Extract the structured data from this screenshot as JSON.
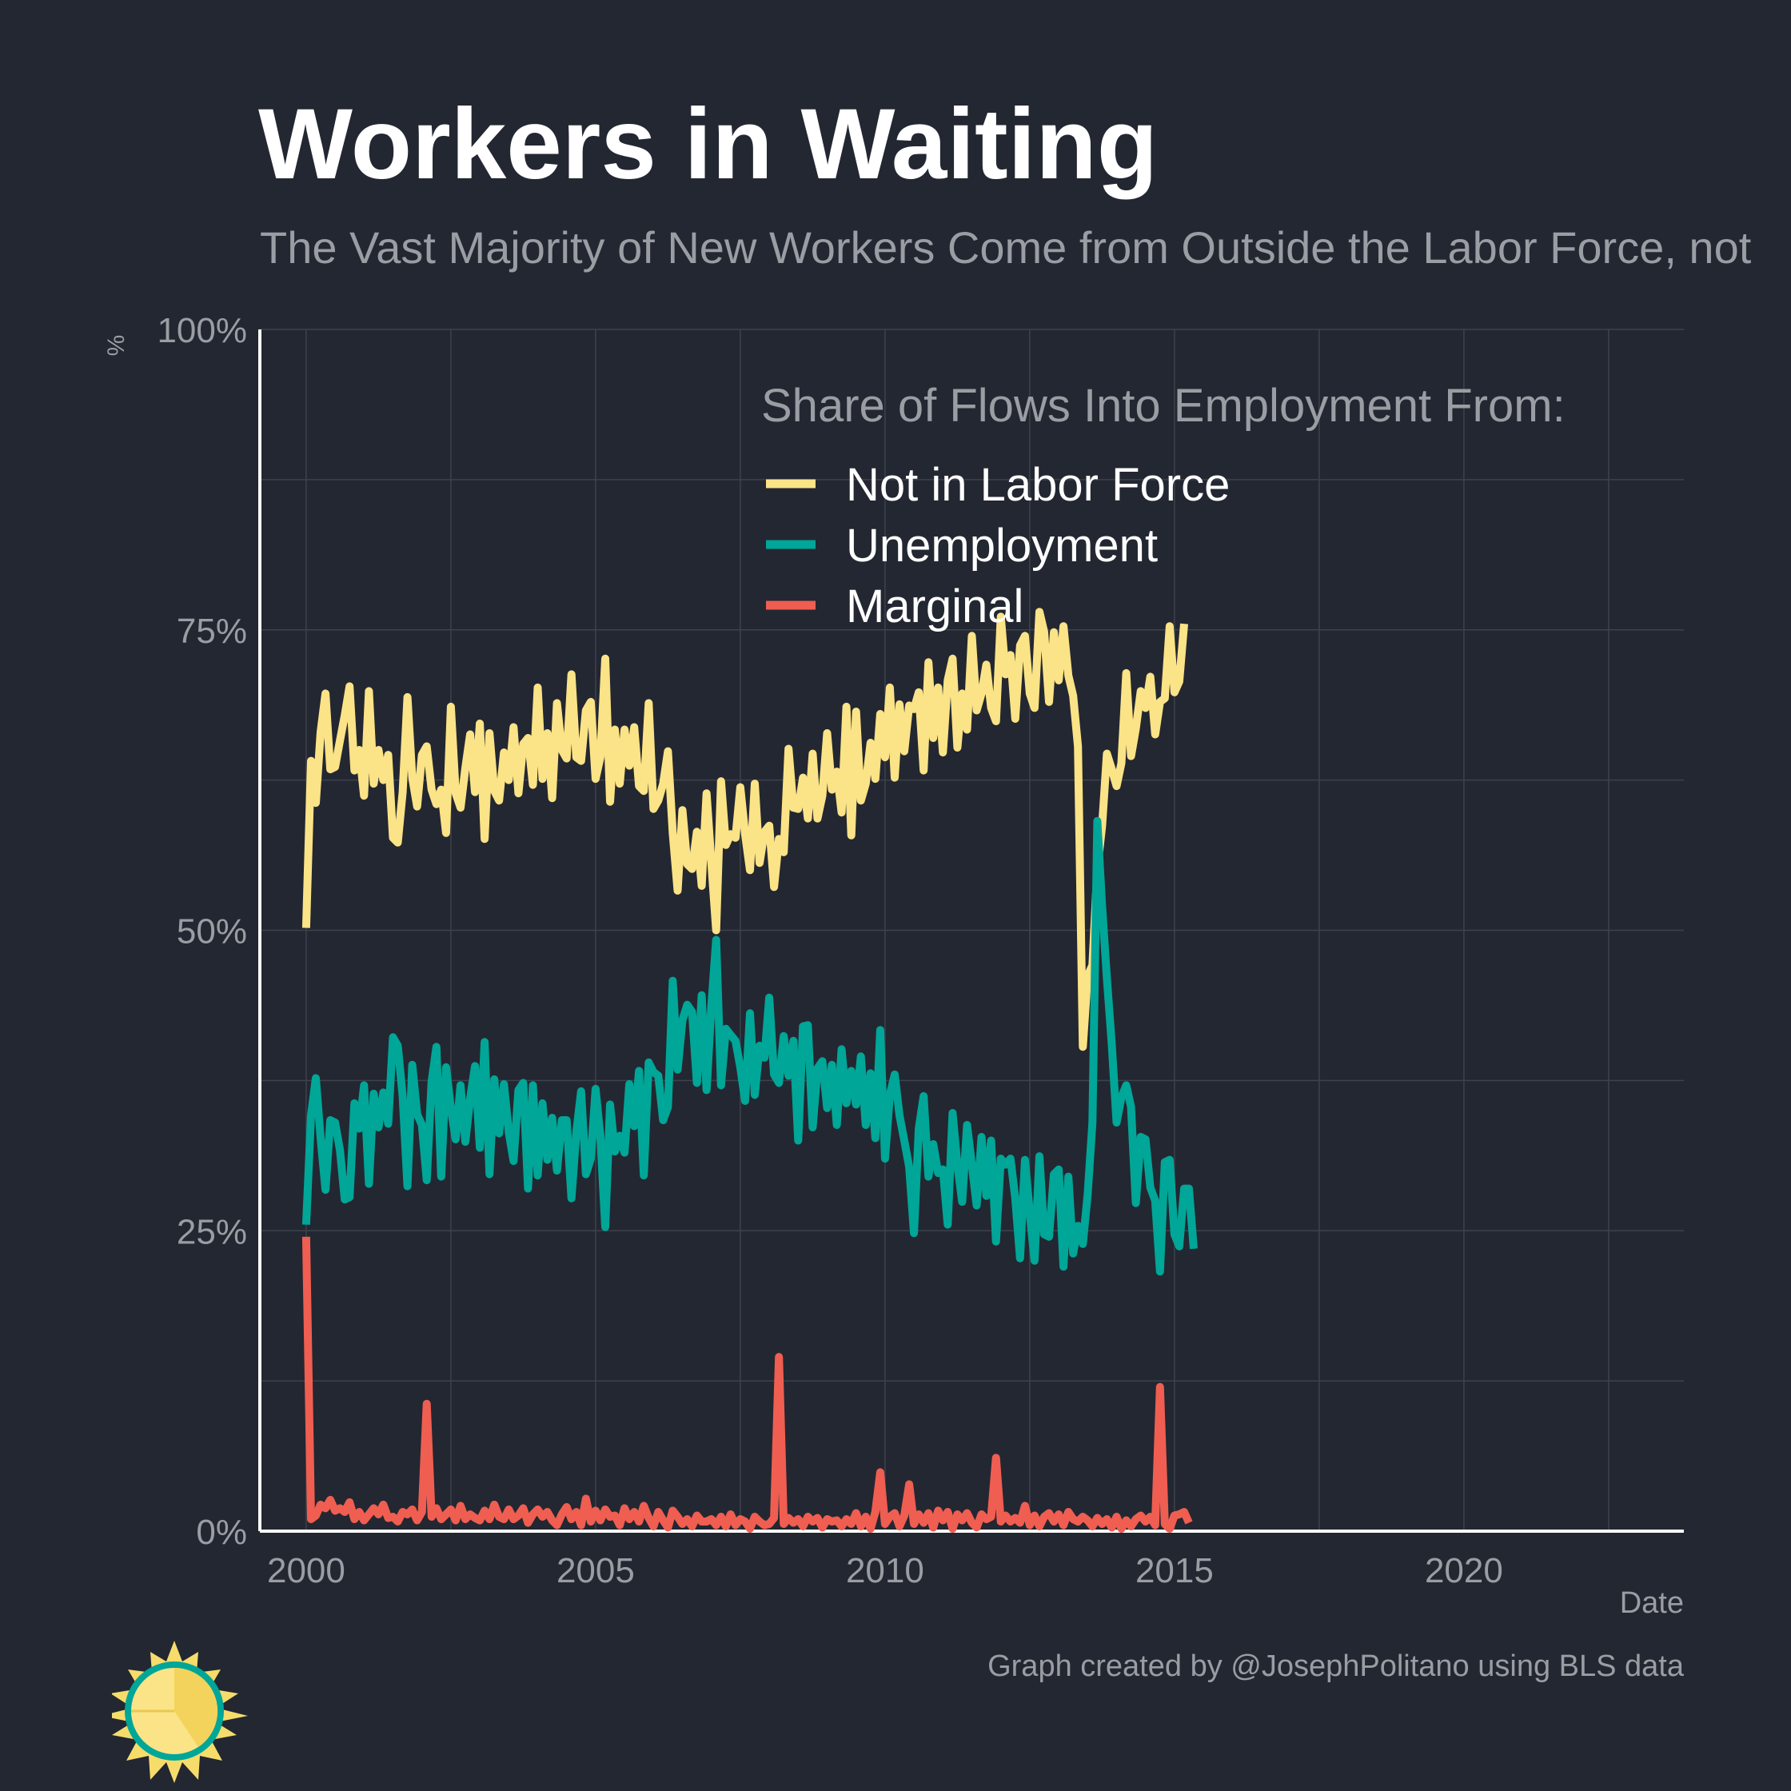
{
  "title": "Workers in Waiting",
  "subtitle": "The Vast Majority of New Workers Come from Outside the Labor Force, not",
  "caption": "Graph created by @JosephPolitano using BLS data",
  "colors": {
    "background": "#232731",
    "grid": "#3d424c",
    "text_muted": "#9a9da3",
    "series": [
      "#fbe387",
      "#00a697",
      "#ef5e51"
    ]
  },
  "chart_data": {
    "type": "line",
    "xlabel": "Date",
    "ylabel": "%",
    "xlim": [
      1999.2,
      2023.8
    ],
    "ylim": [
      0,
      100
    ],
    "x_ticks": [
      2000,
      2005,
      2010,
      2015,
      2020
    ],
    "x_tick_labels": [
      "2000",
      "2005",
      "2010",
      "2015",
      "2020"
    ],
    "y_ticks": [
      0,
      25,
      50,
      75,
      100
    ],
    "y_tick_labels": [
      "0%",
      "25%",
      "50%",
      "75%",
      "100%"
    ],
    "grid": true,
    "legend": {
      "title": "Share of Flows Into Employment From:",
      "placement": "top-right"
    },
    "x_start": 2000.0,
    "x_step": 0.0833333,
    "series": [
      {
        "name": "Not in Labor Force",
        "color": "#fbe387",
        "values": [
          50.2,
          64.1,
          60.6,
          66.5,
          69.7,
          63.4,
          63.6,
          65.8,
          67.9,
          70.3,
          63.3,
          65.0,
          61.2,
          69.9,
          62.2,
          65.0,
          62.5,
          64.6,
          57.7,
          57.3,
          61.5,
          69.4,
          62.7,
          60.3,
          64.6,
          65.3,
          61.7,
          60.5,
          61.7,
          58.1,
          68.6,
          61.4,
          60.2,
          63.5,
          66.3,
          61.5,
          67.2,
          57.6,
          66.4,
          61.6,
          60.8,
          64.8,
          62.5,
          66.9,
          61.4,
          65.5,
          66.0,
          62.1,
          70.2,
          62.6,
          66.4,
          61.0,
          68.9,
          65.0,
          64.3,
          71.3,
          64.4,
          64.1,
          68.3,
          69.0,
          62.6,
          64.4,
          72.6,
          60.7,
          66.7,
          62.2,
          66.7,
          63.7,
          66.9,
          62.0,
          61.6,
          68.9,
          60.1,
          60.8,
          62.2,
          64.9,
          58.1,
          53.3,
          60.0,
          55.5,
          55.1,
          58.2,
          53.7,
          61.4,
          55.6,
          50.0,
          62.4,
          57.1,
          58.0,
          57.7,
          61.9,
          58.0,
          55.0,
          62.2,
          55.6,
          58.2,
          58.7,
          53.6,
          57.6,
          56.5,
          65.1,
          60.2,
          60.1,
          62.7,
          59.3,
          64.7,
          59.3,
          61.2,
          66.4,
          61.7,
          63.2,
          59.8,
          68.6,
          57.9,
          68.2,
          60.8,
          62.2,
          65.6,
          62.6,
          68.0,
          64.4,
          70.2,
          62.7,
          68.8,
          64.9,
          68.7,
          68.4,
          69.8,
          63.3,
          72.3,
          66.0,
          70.2,
          64.8,
          70.8,
          72.6,
          65.2,
          69.7,
          66.7,
          74.5,
          68.3,
          69.7,
          72.1,
          68.5,
          67.4,
          76.1,
          71.3,
          72.9,
          67.6,
          73.7,
          74.5,
          69.7,
          68.5,
          76.5,
          74.8,
          69.0,
          74.8,
          70.8,
          75.3,
          71.2,
          69.5,
          65.3,
          40.3,
          46.2,
          47.1,
          55.1,
          58.7,
          64.7,
          63.4,
          62.0,
          63.9,
          71.4,
          64.5,
          66.8,
          69.9,
          68.5,
          71.1,
          66.3,
          69.0,
          69.3,
          75.3,
          69.8,
          70.7,
          75.5
        ],
        "label_x": 2000.0
      },
      {
        "name": "Unemployment",
        "color": "#00a697",
        "values": [
          25.5,
          34.6,
          37.7,
          32.7,
          28.4,
          34.2,
          34.0,
          31.7,
          27.6,
          27.8,
          35.6,
          33.5,
          37.1,
          28.9,
          36.4,
          33.6,
          36.5,
          33.9,
          41.1,
          40.4,
          36.2,
          28.7,
          38.8,
          34.7,
          33.8,
          29.2,
          37.4,
          40.3,
          29.5,
          38.6,
          35.2,
          32.6,
          37.1,
          32.4,
          36.0,
          38.7,
          31.9,
          40.7,
          29.7,
          37.6,
          33.1,
          37.2,
          33.2,
          30.8,
          36.7,
          37.3,
          28.5,
          37.1,
          29.6,
          35.6,
          30.9,
          34.4,
          30.0,
          34.2,
          34.2,
          27.7,
          33.2,
          36.6,
          29.7,
          31.0,
          36.8,
          32.8,
          25.3,
          35.5,
          31.6,
          32.9,
          31.5,
          37.2,
          33.7,
          38.3,
          29.6,
          39.0,
          38.2,
          37.9,
          34.2,
          35.3,
          45.8,
          38.4,
          42.5,
          43.8,
          43.2,
          37.3,
          44.6,
          36.7,
          43.7,
          49.2,
          37.1,
          41.8,
          41.3,
          40.8,
          38.6,
          35.8,
          43.1,
          36.3,
          40.4,
          39.4,
          44.4,
          38.0,
          37.3,
          41.2,
          37.9,
          40.8,
          32.5,
          42.0,
          42.1,
          33.6,
          38.5,
          39.1,
          35.2,
          38.8,
          33.8,
          40.1,
          35.6,
          38.3,
          35.5,
          39.5,
          33.8,
          38.1,
          32.7,
          41.7,
          31.0,
          36.3,
          38.0,
          34.6,
          32.5,
          30.3,
          24.8,
          33.5,
          36.2,
          29.5,
          32.2,
          29.8,
          30.1,
          25.5,
          34.8,
          30.5,
          27.4,
          33.8,
          30.5,
          27.1,
          32.8,
          27.9,
          32.5,
          24.1,
          31.0,
          30.5,
          31.0,
          27.7,
          22.7,
          30.9,
          26.5,
          22.5,
          31.2,
          24.7,
          24.5,
          29.7,
          30.1,
          22.0,
          29.5,
          23.1,
          25.4,
          23.9,
          28.0,
          34.0,
          59.1,
          52.0,
          46.0,
          40.5,
          34.0,
          36.1,
          37.1,
          35.3,
          27.3,
          32.8,
          32.6,
          28.6,
          27.5,
          21.6,
          30.7,
          30.9,
          24.7,
          23.7,
          28.5,
          28.5,
          23.5
        ],
        "label_x": 2000.0
      },
      {
        "name": "Marginal",
        "color": "#ef5e51",
        "values": [
          24.5,
          1.0,
          1.3,
          2.2,
          1.9,
          2.6,
          1.7,
          1.9,
          1.6,
          2.4,
          1.0,
          1.6,
          0.9,
          1.4,
          1.9,
          1.4,
          2.2,
          1.1,
          1.2,
          0.8,
          1.6,
          1.4,
          1.8,
          0.9,
          1.6,
          10.6,
          1.2,
          1.9,
          1.0,
          1.4,
          1.8,
          0.9,
          2.1,
          1.0,
          1.4,
          1.1,
          0.9,
          1.7,
          1.0,
          2.2,
          1.2,
          1.0,
          1.8,
          1.0,
          1.3,
          1.9,
          0.7,
          1.4,
          1.8,
          1.2,
          1.6,
          0.9,
          0.5,
          1.4,
          2.0,
          1.0,
          1.6,
          0.5,
          2.7,
          0.8,
          1.7,
          0.9,
          1.8,
          1.2,
          1.3,
          0.5,
          1.9,
          1.0,
          1.6,
          0.8,
          2.1,
          1.1,
          0.4,
          1.6,
          0.9,
          0.3,
          1.7,
          1.2,
          0.6,
          1.0,
          0.4,
          1.3,
          0.8,
          0.8,
          1.0,
          0.5,
          1.2,
          0.4,
          1.4,
          0.5,
          1.0,
          0.8,
          0.2,
          1.2,
          0.8,
          0.5,
          0.6,
          1.1,
          14.5,
          0.6,
          1.1,
          0.7,
          1.0,
          0.4,
          1.2,
          0.8,
          1.1,
          0.3,
          1.0,
          0.8,
          0.9,
          0.4,
          1.0,
          0.6,
          1.5,
          0.4,
          1.2,
          0.2,
          1.6,
          4.9,
          0.6,
          1.2,
          1.5,
          0.4,
          1.3,
          3.9,
          0.6,
          1.4,
          0.7,
          1.5,
          0.3,
          1.7,
          0.9,
          1.6,
          0.2,
          1.4,
          0.9,
          1.5,
          0.7,
          0.3,
          1.4,
          1.0,
          1.2,
          6.1,
          0.8,
          1.3,
          0.8,
          1.1,
          0.7,
          2.1,
          0.5,
          1.3,
          0.4,
          1.2,
          1.5,
          0.8,
          1.4,
          0.5,
          1.6,
          1.0,
          0.8,
          1.2,
          0.9,
          0.4,
          1.1,
          0.6,
          1.0,
          0.3,
          1.2,
          0.2,
          0.9,
          0.4,
          1.0,
          1.3,
          0.8,
          1.2,
          0.5,
          12.0,
          0.6,
          0.2,
          1.3,
          1.4,
          1.6,
          0.7
        ],
        "label_x": 2000.0
      }
    ]
  }
}
